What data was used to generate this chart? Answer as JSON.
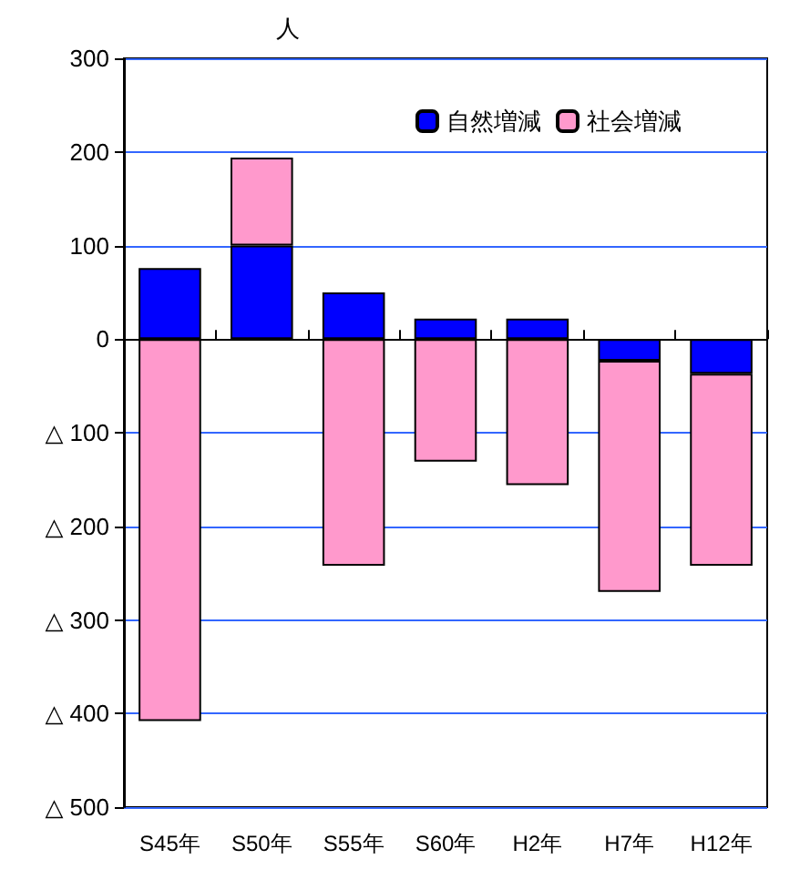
{
  "chart_data": {
    "type": "bar",
    "ylabel": "人",
    "stacked": true,
    "categories": [
      "S45年",
      "S50年",
      "S55年",
      "S60年",
      "H2年",
      "H7年",
      "H12年"
    ],
    "series": [
      {
        "name": "自然増減",
        "color": "#0000ff",
        "values": [
          76,
          100,
          50,
          22,
          22,
          -23,
          -37
        ]
      },
      {
        "name": "社会増減",
        "color": "#ff99cc",
        "values": [
          -408,
          94,
          -242,
          -131,
          -156,
          -247,
          -205
        ]
      }
    ],
    "ylim": [
      -500,
      300
    ],
    "yticks": [
      {
        "value": -500,
        "label": "△ 500"
      },
      {
        "value": -400,
        "label": "△ 400"
      },
      {
        "value": -300,
        "label": "△ 300"
      },
      {
        "value": -200,
        "label": "△ 200"
      },
      {
        "value": -100,
        "label": "△ 100"
      },
      0,
      100,
      200,
      300
    ],
    "grid": "y",
    "legend": "top right"
  }
}
